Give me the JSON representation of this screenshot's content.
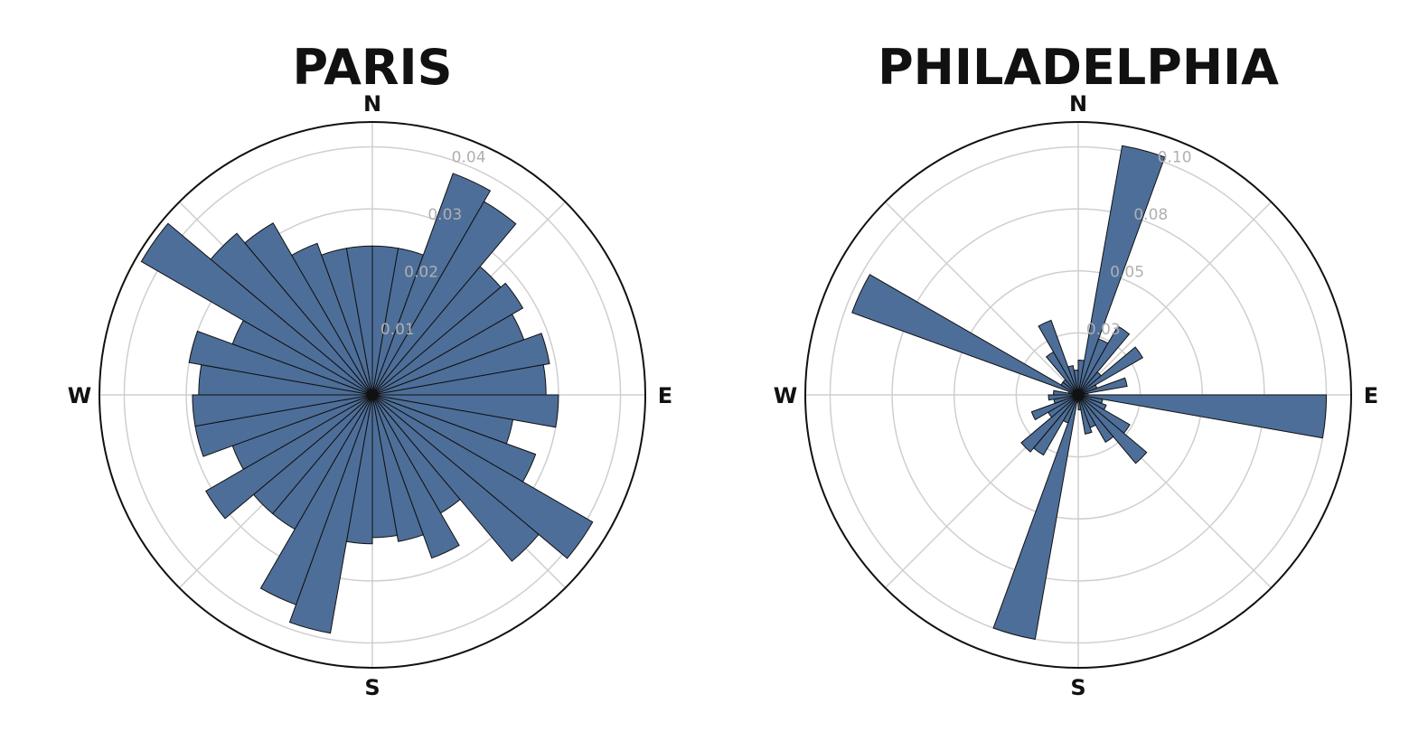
{
  "chart_data": [
    {
      "type": "polar_bar",
      "title": "PARIS",
      "directions": [
        "N",
        "E",
        "S",
        "W"
      ],
      "rmax": 0.044,
      "rticks": [
        0.01,
        0.02,
        0.03,
        0.04
      ],
      "rtick_labels": [
        "0.01",
        "0.02",
        "0.03",
        "0.04"
      ],
      "bin_width_deg": 10,
      "bin_start_deg": 0,
      "values": [
        0.024,
        0.024,
        0.038,
        0.036,
        0.027,
        0.028,
        0.026,
        0.029,
        0.028,
        0.03,
        0.023,
        0.028,
        0.041,
        0.035,
        0.022,
        0.028,
        0.024,
        0.023,
        0.024,
        0.039,
        0.036,
        0.025,
        0.025,
        0.031,
        0.024,
        0.029,
        0.029,
        0.028,
        0.03,
        0.024,
        0.043,
        0.034,
        0.032,
        0.026,
        0.024,
        0.024
      ]
    },
    {
      "type": "polar_bar",
      "title": "PHILADELPHIA",
      "directions": [
        "N",
        "E",
        "S",
        "W"
      ],
      "rmax": 0.11,
      "rticks": [
        0.025,
        0.05,
        0.075,
        0.1
      ],
      "rtick_labels": [
        "0.03",
        "0.05",
        "0.08",
        "0.10"
      ],
      "bin_width_deg": 10,
      "bin_start_deg": 0,
      "values": [
        0.014,
        0.102,
        0.024,
        0.032,
        0.012,
        0.03,
        0.008,
        0.02,
        0.004,
        0.1,
        0.01,
        0.012,
        0.024,
        0.036,
        0.022,
        0.014,
        0.016,
        0.006,
        0.003,
        0.1,
        0.012,
        0.028,
        0.03,
        0.014,
        0.02,
        0.01,
        0.012,
        0.01,
        0.004,
        0.097,
        0.008,
        0.008,
        0.02,
        0.032,
        0.012,
        0.01
      ]
    }
  ]
}
